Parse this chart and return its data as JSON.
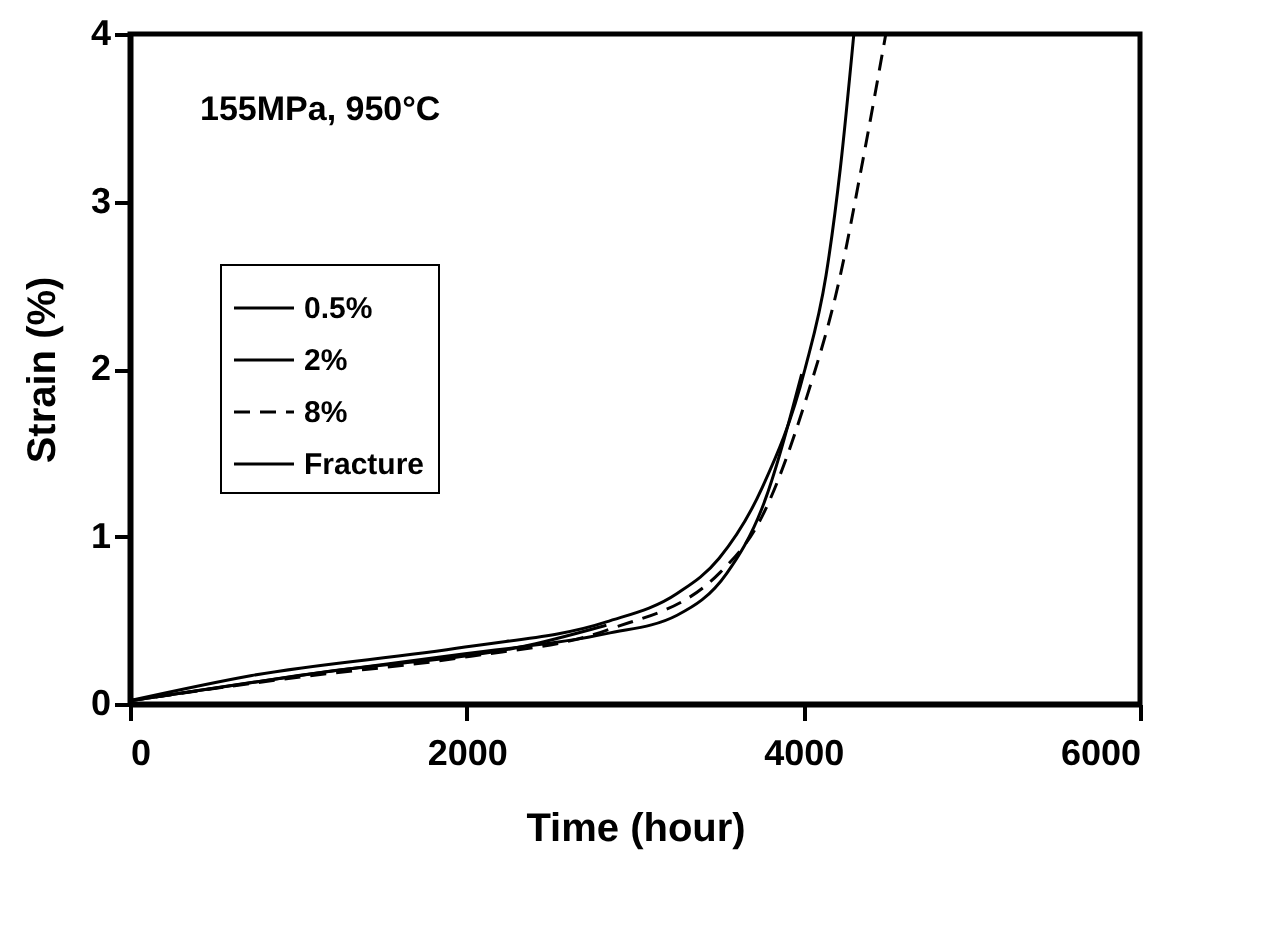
{
  "chart_data": {
    "type": "line",
    "xlabel": "Time (hour)",
    "ylabel": "Strain (%)",
    "annotations": [
      "155MPa, 950°C"
    ],
    "xlim": [
      0,
      6000
    ],
    "ylim": [
      0,
      4
    ],
    "xticks": [
      0,
      2000,
      4000,
      6000
    ],
    "yticks": [
      0,
      1,
      2,
      3,
      4
    ],
    "grid": false,
    "legend": "left",
    "marker": "none",
    "series": [
      {
        "name": "0.5%",
        "color": "#000000",
        "line_style": "solid",
        "x": [
          0,
          1145,
          2410,
          2830
        ],
        "values": [
          0.02,
          0.19,
          0.36,
          0.47
        ]
      },
      {
        "name": "2%",
        "color": "#000000",
        "line_style": "solid",
        "x": [
          0,
          1000,
          1990,
          2830,
          3250,
          3545,
          3755,
          3990
        ],
        "values": [
          0.02,
          0.17,
          0.3,
          0.42,
          0.53,
          0.78,
          1.17,
          1.97
        ]
      },
      {
        "name": "8%",
        "color": "#000000",
        "line_style": "dashed",
        "x": [
          0,
          1000,
          1990,
          2830,
          3500,
          3755,
          4010,
          4220,
          4345,
          4490
        ],
        "values": [
          0.02,
          0.16,
          0.28,
          0.44,
          0.78,
          1.12,
          1.8,
          2.56,
          3.2,
          4.0
        ]
      },
      {
        "name": "Fracture",
        "color": "#000000",
        "line_style": "solid",
        "x": [
          0,
          724,
          1990,
          2830,
          3250,
          3500,
          3755,
          4010,
          4135,
          4220,
          4300
        ],
        "values": [
          0.02,
          0.17,
          0.34,
          0.49,
          0.66,
          0.87,
          1.29,
          2.0,
          2.56,
          3.2,
          4.0
        ]
      }
    ]
  }
}
